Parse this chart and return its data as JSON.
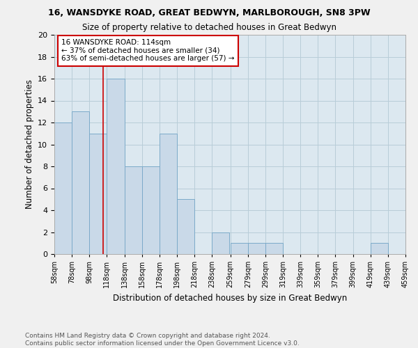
{
  "title": "16, WANSDYKE ROAD, GREAT BEDWYN, MARLBOROUGH, SN8 3PW",
  "subtitle": "Size of property relative to detached houses in Great Bedwyn",
  "xlabel": "Distribution of detached houses by size in Great Bedwyn",
  "ylabel": "Number of detached properties",
  "footer_line1": "Contains HM Land Registry data © Crown copyright and database right 2024.",
  "footer_line2": "Contains public sector information licensed under the Open Government Licence v3.0.",
  "bin_edges": [
    58,
    78,
    98,
    118,
    138,
    158,
    178,
    198,
    218,
    238,
    259,
    279,
    299,
    319,
    339,
    359,
    379,
    399,
    419,
    439,
    459
  ],
  "counts": [
    12,
    13,
    11,
    16,
    8,
    8,
    11,
    5,
    0,
    2,
    1,
    1,
    1,
    0,
    0,
    0,
    0,
    0,
    1,
    0
  ],
  "bar_color": "#c9d9e8",
  "bar_edge_color": "#7baac9",
  "property_value": 114,
  "vline_color": "#cc0000",
  "annotation_text_line1": "16 WANSDYKE ROAD: 114sqm",
  "annotation_text_line2": "← 37% of detached houses are smaller (34)",
  "annotation_text_line3": "63% of semi-detached houses are larger (57) →",
  "annotation_box_color": "#ffffff",
  "annotation_box_edge_color": "#cc0000",
  "ylim": [
    0,
    20
  ],
  "yticks": [
    0,
    2,
    4,
    6,
    8,
    10,
    12,
    14,
    16,
    18,
    20
  ],
  "tick_labels": [
    "58sqm",
    "78sqm",
    "98sqm",
    "118sqm",
    "138sqm",
    "158sqm",
    "178sqm",
    "198sqm",
    "218sqm",
    "238sqm",
    "259sqm",
    "279sqm",
    "299sqm",
    "319sqm",
    "339sqm",
    "359sqm",
    "379sqm",
    "399sqm",
    "419sqm",
    "439sqm",
    "459sqm"
  ],
  "grid_color": "#b8cdd8",
  "background_color": "#dce8f0",
  "fig_background_color": "#f0f0f0"
}
